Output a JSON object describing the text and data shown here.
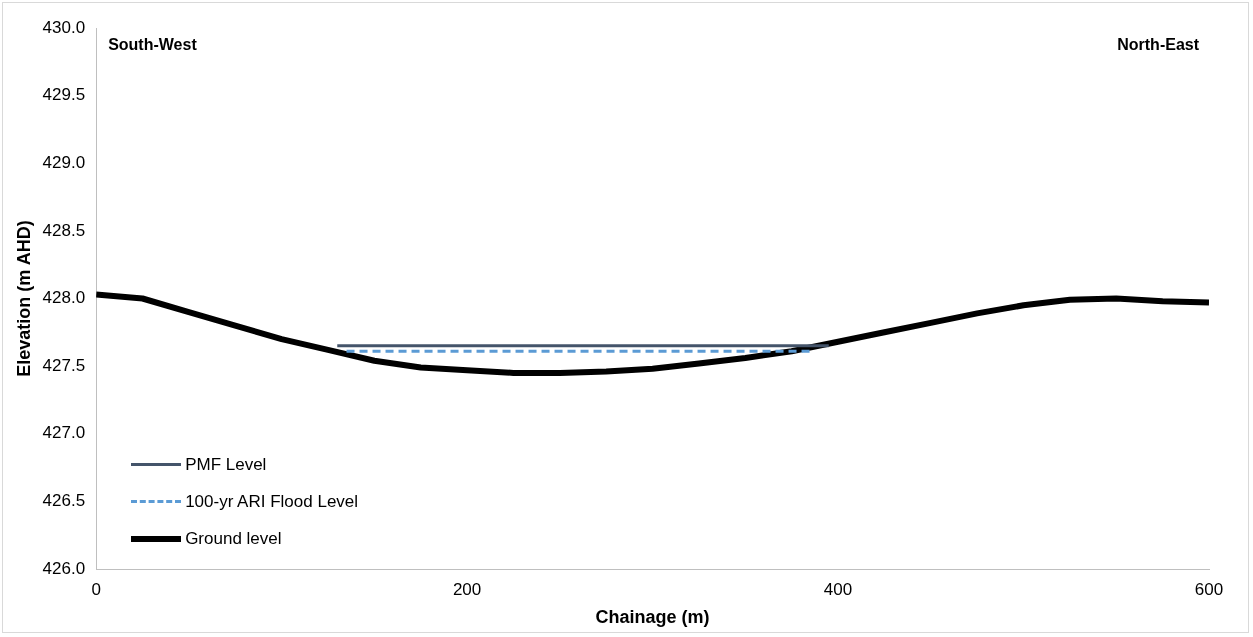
{
  "chart_data": {
    "type": "line",
    "xlabel": "Chainage (m)",
    "ylabel": "Elevation (m AHD)",
    "annotations": [
      "South-West",
      "North-East"
    ],
    "xlim": [
      0,
      600
    ],
    "xticks": [
      0,
      200,
      400,
      600
    ],
    "ylim": [
      426,
      430
    ],
    "yticks": [
      {
        "value": 426,
        "label": "426.0"
      },
      {
        "value": 426.5,
        "label": "426.5"
      },
      {
        "value": 427,
        "label": "427.0"
      },
      {
        "value": 427.5,
        "label": "427.5"
      },
      {
        "value": 428,
        "label": "428.0"
      },
      {
        "value": 428.5,
        "label": "428.5"
      },
      {
        "value": 429,
        "label": "429.0"
      },
      {
        "value": 429.5,
        "label": "429.5"
      },
      {
        "value": 430,
        "label": "430.0"
      }
    ],
    "grid": false,
    "legend": "bottom left",
    "marker": "none",
    "series": [
      {
        "name": "PMF Level",
        "color": "#44546a",
        "line_style": "solid",
        "x": [
          130,
          395
        ],
        "values": [
          427.65,
          427.65
        ]
      },
      {
        "name": "100-yr ARI Flood Level",
        "color": "#5b9bd5",
        "line_style": "dashed",
        "x": [
          135,
          385
        ],
        "values": [
          427.61,
          427.61
        ]
      },
      {
        "name": "Ground level",
        "color": "#000000",
        "line_style": "solid",
        "x": [
          0,
          25,
          50,
          75,
          100,
          125,
          150,
          175,
          200,
          225,
          250,
          275,
          300,
          325,
          350,
          375,
          400,
          425,
          450,
          475,
          500,
          525,
          550,
          575,
          600
        ],
        "values": [
          428.03,
          428.0,
          427.9,
          427.8,
          427.7,
          427.62,
          427.54,
          427.49,
          427.47,
          427.45,
          427.45,
          427.46,
          427.48,
          427.52,
          427.56,
          427.61,
          427.68,
          427.75,
          427.82,
          427.89,
          427.95,
          427.99,
          428.0,
          427.98,
          427.97
        ]
      }
    ]
  }
}
